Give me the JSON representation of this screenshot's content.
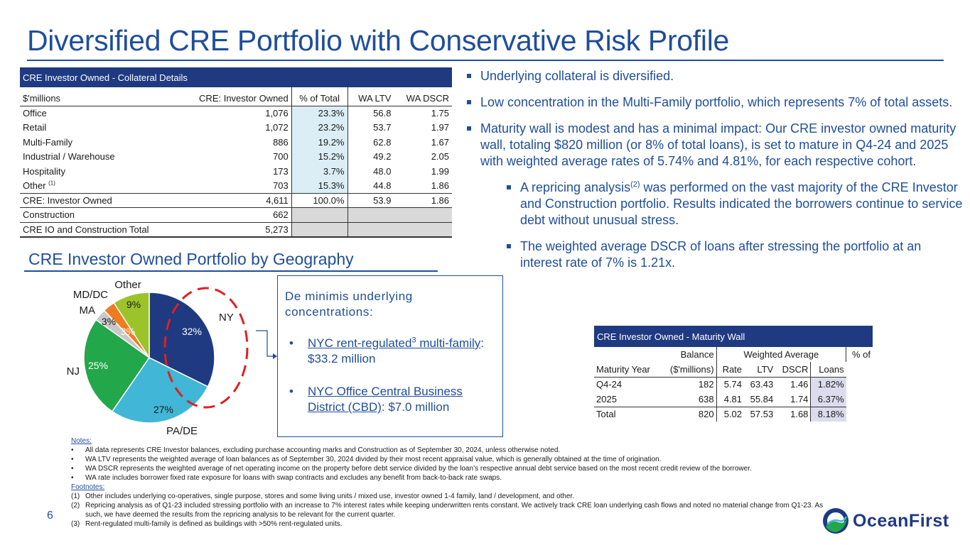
{
  "title": "Diversified CRE Portfolio with Conservative Risk Profile",
  "collateral_table": {
    "header": "CRE Investor Owned - Collateral Details",
    "columns": [
      "$'millions",
      "CRE: Investor Owned",
      "% of Total",
      "WA LTV",
      "WA DSCR"
    ],
    "rows": [
      {
        "name": "Office",
        "amount": "1,076",
        "pct": "23.3%",
        "ltv": "56.8",
        "dscr": "1.75"
      },
      {
        "name": "Retail",
        "amount": "1,072",
        "pct": "23.2%",
        "ltv": "53.7",
        "dscr": "1.97"
      },
      {
        "name": "Multi-Family",
        "amount": "886",
        "pct": "19.2%",
        "ltv": "62.8",
        "dscr": "1.67"
      },
      {
        "name": "Industrial / Warehouse",
        "amount": "700",
        "pct": "15.2%",
        "ltv": "49.2",
        "dscr": "2.05"
      },
      {
        "name": "Hospitality",
        "amount": "173",
        "pct": "3.7%",
        "ltv": "48.0",
        "dscr": "1.99"
      },
      {
        "name": "Other",
        "footnote": "(1)",
        "amount": "703",
        "pct": "15.3%",
        "ltv": "44.8",
        "dscr": "1.86"
      }
    ],
    "total": {
      "name": "CRE: Investor Owned",
      "amount": "4,611",
      "pct": "100.0%",
      "ltv": "53.9",
      "dscr": "1.86"
    },
    "construction": {
      "name": "Construction",
      "amount": "662"
    },
    "grand_total": {
      "name": "CRE IO and Construction Total",
      "amount": "5,273"
    }
  },
  "geo": {
    "title": "CRE Investor Owned Portfolio by Geography"
  },
  "chart_data": {
    "type": "pie",
    "title": "CRE Investor Owned Portfolio by Geography",
    "slices": [
      {
        "label": "NY",
        "value": 32,
        "display": "32%",
        "color": "#1f3a80"
      },
      {
        "label": "PA/DE",
        "value": 27,
        "display": "27%",
        "color": "#41b6d6"
      },
      {
        "label": "NJ",
        "value": 25,
        "display": "25%",
        "color": "#22a74a"
      },
      {
        "label": "MA",
        "value": 3,
        "display": "3%",
        "color": "#c8c8c8"
      },
      {
        "label": "MD/DC",
        "value": 3,
        "display": "3%",
        "color": "#f07c22"
      },
      {
        "label": "Other",
        "value": 9,
        "display": "9%",
        "color": "#9dc32a"
      }
    ]
  },
  "callout": {
    "intro": "De minimis underlying concentrations:",
    "items": [
      {
        "link_a": "NYC rent-regulated",
        "sup": "3",
        "link_b": " multi-family",
        "rest": ": $33.2 million"
      },
      {
        "link_a": "NYC Office Central Business District (CBD)",
        "sup": "",
        "link_b": "",
        "rest": ": $7.0 million"
      }
    ]
  },
  "bullets": [
    {
      "text": "Underlying collateral is diversified."
    },
    {
      "text": "Low concentration in the Multi-Family portfolio, which represents 7% of total assets."
    },
    {
      "text": "Maturity wall is modest and has a minimal impact: Our CRE investor owned maturity wall, totaling $820 million (or 8% of total loans), is set to mature in Q4-24 and 2025 with weighted average rates of 5.74% and 4.81%, for each respective cohort."
    },
    {
      "text_a": "A repricing analysis",
      "sup": "(2)",
      "text_b": " was performed on the vast majority of the CRE Investor and Construction portfolio. Results indicated the borrowers continue to service debt without unusual stress."
    },
    {
      "text": "The weighted average DSCR of loans after stressing the portfolio at an interest rate of 7% is 1.21x."
    }
  ],
  "maturity_table": {
    "header": "CRE Investor Owned - Maturity Wall",
    "h1": {
      "balance": "Balance",
      "wa": "Weighted Average",
      "pct": "% of"
    },
    "h2": {
      "year": "Maturity Year",
      "balance": "($'millions)",
      "rate": "Rate",
      "ltv": "LTV",
      "dscr": "DSCR",
      "loans": "Loans"
    },
    "rows": [
      {
        "year": "Q4-24",
        "balance": "182",
        "rate": "5.74",
        "ltv": "63.43",
        "dscr": "1.46",
        "loans": "1.82%"
      },
      {
        "year": "2025",
        "balance": "638",
        "rate": "4.81",
        "ltv": "55.84",
        "dscr": "1.74",
        "loans": "6.37%"
      }
    ],
    "total": {
      "year": "Total",
      "balance": "820",
      "rate": "5.02",
      "ltv": "57.53",
      "dscr": "1.68",
      "loans": "8.18%"
    }
  },
  "notes": {
    "notes_header": "Notes:",
    "notes": [
      "All data represents CRE Investor balances, excluding purchase accounting marks and Construction as of September 30, 2024, unless otherwise noted.",
      "WA LTV represents the weighted average of loan balances as of September 30, 2024 divided by their most recent appraisal value, which is generally obtained at the time of origination.",
      "WA DSCR represents the weighted average of net operating income on the property before debt service divided by the loan’s respective annual debt service based on the most recent credit review of the borrower.",
      "WA rate includes borrower fixed rate exposure for loans with swap contracts and excludes any benefit from back-to-back rate swaps."
    ],
    "footnotes_header": "Footnotes:",
    "footnotes": [
      {
        "mark": "(1)",
        "text": "Other includes underlying co-operatives, single purpose, stores and some living units / mixed use, investor owned 1-4 family, land / development, and other."
      },
      {
        "mark": "(2)",
        "text": "Repricing analysis as of Q1-23 included stressing portfolio with an increase to 7% interest rates while keeping underwritten rents constant. We actively track CRE loan underlying cash flows and noted no material change from Q1-23. As such, we have deemed the results from the repricing analysis to be relevant for the current quarter."
      },
      {
        "mark": "(3)",
        "text": "Rent-regulated multi-family is defined as buildings with >50% rent-regulated units."
      }
    ]
  },
  "page_number": "6",
  "logo_text": "OceanFirst",
  "colors": {
    "brand_blue": "#1f4e9a",
    "header_navy": "#1f3a80",
    "callout_red": "#e02020"
  }
}
